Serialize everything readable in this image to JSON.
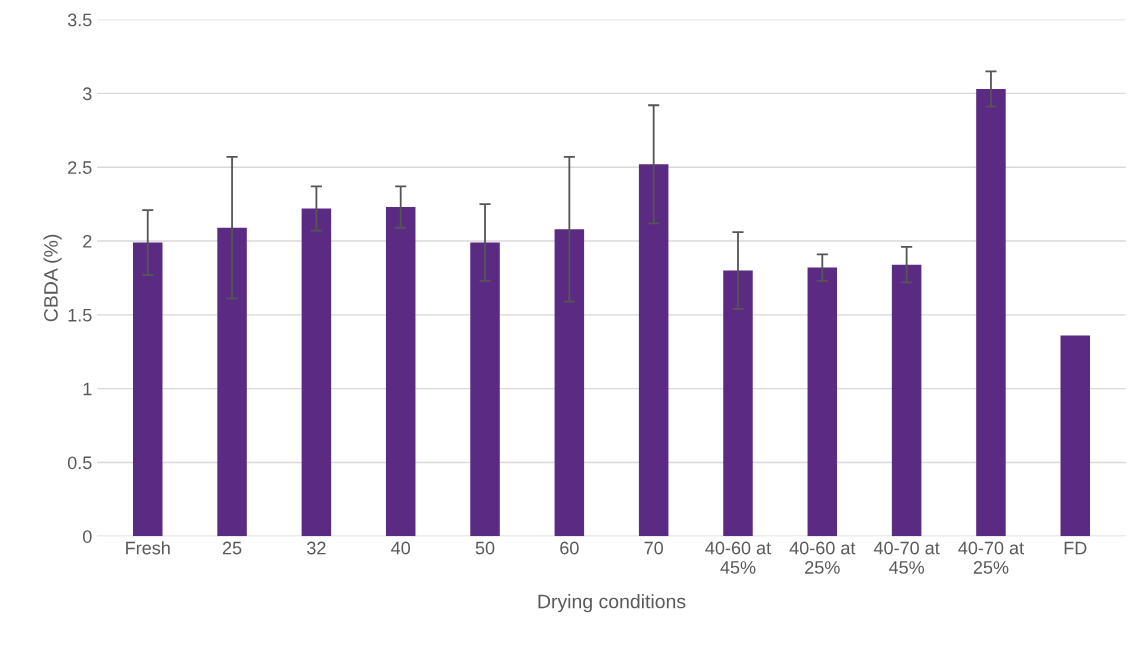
{
  "chart_data": {
    "type": "bar",
    "xlabel": "Drying conditions",
    "ylabel": "CBDA (%)",
    "categories": [
      "Fresh",
      "25",
      "32",
      "40",
      "50",
      "60",
      "70",
      "40-60 at 45%",
      "40-60 at 25%",
      "40-70 at 45%",
      "40-70 at 25%",
      "FD"
    ],
    "values": [
      1.99,
      2.09,
      2.22,
      2.23,
      1.99,
      2.08,
      2.52,
      1.8,
      1.82,
      1.84,
      3.03,
      1.36
    ],
    "errors": [
      0.22,
      0.48,
      0.15,
      0.14,
      0.26,
      0.49,
      0.4,
      0.26,
      0.09,
      0.12,
      0.12,
      null
    ],
    "color": "#5b2a82",
    "ylim": [
      0,
      3.5
    ],
    "yticks": [
      0,
      0.5,
      1,
      1.5,
      2,
      2.5,
      3,
      3.5
    ],
    "grid": "y",
    "legend": false
  }
}
